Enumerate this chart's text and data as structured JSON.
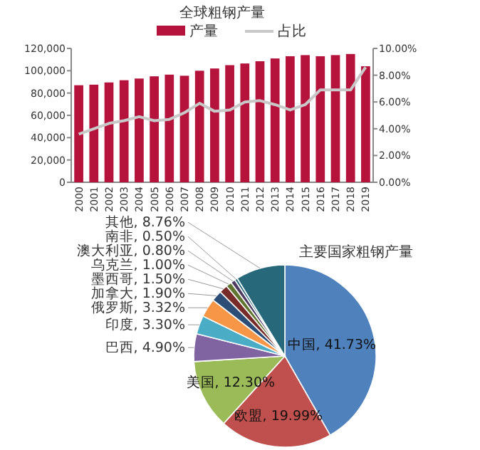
{
  "chart_data": [
    {
      "type": "bar",
      "title": "全球粗钢产量",
      "categories": [
        "2000",
        "2001",
        "2002",
        "2003",
        "2004",
        "2005",
        "2006",
        "2007",
        "2008",
        "2009",
        "2010",
        "2011",
        "2012",
        "2013",
        "2014",
        "2015",
        "2016",
        "2017",
        "2018",
        "2019"
      ],
      "series": [
        {
          "name": "产量",
          "type": "bar",
          "color": "#b5123c",
          "values": [
            87000,
            87500,
            89500,
            91500,
            93000,
            95000,
            96500,
            95500,
            100000,
            102000,
            105000,
            106500,
            108500,
            111000,
            113000,
            114000,
            113000,
            114000,
            115000,
            104000
          ]
        },
        {
          "name": "占比",
          "type": "line",
          "axis": "y2",
          "color": "#c8c8c8",
          "values": [
            3.6,
            4.0,
            4.4,
            4.6,
            4.9,
            4.6,
            4.7,
            5.2,
            5.9,
            5.3,
            5.4,
            6.0,
            6.1,
            5.8,
            5.4,
            5.8,
            6.9,
            6.9,
            6.9,
            8.6
          ]
        }
      ],
      "ylim": [
        0,
        120000
      ],
      "yticks": [
        {
          "value": 0,
          "label": "0"
        },
        {
          "value": 20000,
          "label": "20,000"
        },
        {
          "value": 40000,
          "label": "40,000"
        },
        {
          "value": 60000,
          "label": "60,000"
        },
        {
          "value": 80000,
          "label": "80,000"
        },
        {
          "value": 100000,
          "label": "100,000"
        },
        {
          "value": 120000,
          "label": "120,000"
        }
      ],
      "y2lim": [
        0,
        10
      ],
      "y2ticks": [
        {
          "value": 0,
          "label": "0.00%"
        },
        {
          "value": 2,
          "label": "2.00%"
        },
        {
          "value": 4,
          "label": "4.00%"
        },
        {
          "value": 6,
          "label": "6.00%"
        },
        {
          "value": 8,
          "label": "8.00%"
        },
        {
          "value": 10,
          "label": "10.00%"
        }
      ],
      "legend": "top",
      "grid": false
    },
    {
      "type": "pie",
      "title": "主要国家粗钢产量",
      "categories": [
        "中国",
        "欧盟",
        "美国",
        "巴西",
        "印度",
        "俄罗斯",
        "加拿大",
        "墨西哥",
        "乌克兰",
        "澳大利亚",
        "南非",
        "其他"
      ],
      "values": [
        41.73,
        19.99,
        12.3,
        4.9,
        3.3,
        3.32,
        1.9,
        1.5,
        1.0,
        0.8,
        0.5,
        8.76
      ],
      "value_labels": [
        "41.73%",
        "19.99%",
        "12.30%",
        "4.90%",
        "3.30%",
        "3.32%",
        "1.90%",
        "1.50%",
        "1.00%",
        "0.80%",
        "0.50%",
        "8.76%"
      ],
      "colors": [
        "#4f81bd",
        "#c0504d",
        "#9bbb59",
        "#8064a2",
        "#4bacc6",
        "#f79646",
        "#2c4d75",
        "#772c2a",
        "#5f7530",
        "#4d3b62",
        "#276a7c",
        "#27697a"
      ]
    }
  ]
}
